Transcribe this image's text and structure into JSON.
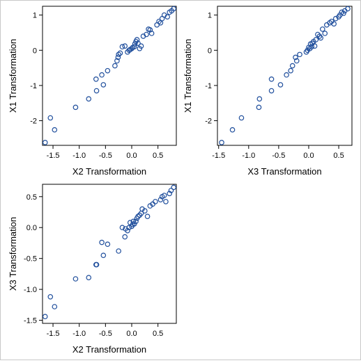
{
  "colors": {
    "marker": "#1f4e9c",
    "axis": "#000000",
    "frame": "#c8c8c8"
  },
  "chart_data": [
    {
      "type": "scatter",
      "title": "",
      "xlabel": "X2 Transformation",
      "ylabel": "X1 Transformation",
      "xlim": [
        -1.7,
        0.85
      ],
      "ylim": [
        -2.7,
        1.25
      ],
      "xticks": [
        -1.5,
        -1.0,
        -0.5,
        0.0,
        0.5
      ],
      "xtick_labels": [
        "-1.5",
        "-1.0",
        "-0.5",
        "0.0",
        "0.5"
      ],
      "yticks": [
        -2,
        -1,
        0,
        1
      ],
      "ytick_labels": [
        "-2",
        "-1",
        "0",
        "1"
      ],
      "grid": false,
      "series": [
        {
          "x": [
            -1.65,
            -1.55,
            -1.47,
            -1.07,
            -0.82,
            -0.68,
            -0.67,
            -0.57,
            -0.54,
            -0.46,
            -0.32,
            -0.28,
            -0.26,
            -0.25,
            -0.22,
            -0.18,
            -0.13,
            -0.08,
            -0.05,
            -0.03,
            0.0,
            0.02,
            0.05,
            0.06,
            0.08,
            0.1,
            0.12,
            0.15,
            0.18,
            0.22,
            0.28,
            0.32,
            0.35,
            0.38,
            0.48,
            0.52,
            0.55,
            0.58,
            0.62,
            0.68,
            0.72,
            0.76,
            0.8
          ],
          "y": [
            -2.62,
            -1.92,
            -2.26,
            -1.62,
            -1.38,
            -0.82,
            -1.15,
            -0.7,
            -0.98,
            -0.58,
            -0.44,
            -0.3,
            -0.2,
            -0.12,
            -0.08,
            0.1,
            0.12,
            -0.05,
            0.0,
            0.02,
            0.05,
            0.08,
            0.1,
            0.18,
            0.25,
            0.3,
            0.2,
            0.05,
            0.12,
            0.4,
            0.45,
            0.6,
            0.58,
            0.48,
            0.72,
            0.82,
            0.78,
            0.9,
            1.0,
            0.95,
            1.08,
            1.12,
            1.18
          ]
        }
      ]
    },
    {
      "type": "scatter",
      "title": "",
      "xlabel": "X3 Transformation",
      "ylabel": "X1 Transformation",
      "xlim": [
        -1.52,
        0.72
      ],
      "ylim": [
        -2.7,
        1.25
      ],
      "xticks": [
        -1.5,
        -1.0,
        -0.5,
        0.0,
        0.5
      ],
      "xtick_labels": [
        "-1.5",
        "-1.0",
        "-0.5",
        "0.0",
        "0.5"
      ],
      "yticks": [
        -2,
        -1,
        0,
        1
      ],
      "ytick_labels": [
        "-2",
        "-1",
        "0",
        "1"
      ],
      "grid": false,
      "series": [
        {
          "x": [
            -1.45,
            -1.27,
            -1.12,
            -0.83,
            -0.82,
            -0.62,
            -0.62,
            -0.47,
            -0.37,
            -0.3,
            -0.27,
            -0.22,
            -0.2,
            -0.15,
            -0.04,
            -0.02,
            0.0,
            0.02,
            0.03,
            0.05,
            0.06,
            0.08,
            0.1,
            0.12,
            0.15,
            0.18,
            0.2,
            0.23,
            0.27,
            0.3,
            0.35,
            0.38,
            0.42,
            0.45,
            0.5,
            0.52,
            0.55,
            0.58,
            0.6,
            0.65
          ],
          "y": [
            -2.62,
            -2.26,
            -1.92,
            -1.62,
            -1.38,
            -1.15,
            -0.82,
            -0.98,
            -0.7,
            -0.58,
            -0.44,
            -0.2,
            -0.3,
            -0.12,
            -0.05,
            0.0,
            0.08,
            0.05,
            0.18,
            0.1,
            0.2,
            0.25,
            0.12,
            0.3,
            0.45,
            0.4,
            0.35,
            0.6,
            0.48,
            0.72,
            0.78,
            0.82,
            0.75,
            0.9,
            0.95,
            1.0,
            1.08,
            1.05,
            1.12,
            1.18
          ]
        }
      ]
    },
    {
      "type": "scatter",
      "title": "",
      "xlabel": "X2 Transformation",
      "ylabel": "X3 Transformation",
      "xlim": [
        -1.7,
        0.85
      ],
      "ylim": [
        -1.55,
        0.7
      ],
      "xticks": [
        -1.5,
        -1.0,
        -0.5,
        0.0,
        0.5
      ],
      "xtick_labels": [
        "-1.5",
        "-1.0",
        "-0.5",
        "0.0",
        "0.5"
      ],
      "yticks": [
        -1.5,
        -1.0,
        -0.5,
        0.0,
        0.5
      ],
      "ytick_labels": [
        "-1.5",
        "-1.0",
        "-0.5",
        "0.0",
        "0.5"
      ],
      "grid": false,
      "series": [
        {
          "x": [
            -1.65,
            -1.55,
            -1.47,
            -1.07,
            -0.82,
            -0.67,
            -0.68,
            -0.54,
            -0.57,
            -0.46,
            -0.25,
            -0.18,
            -0.13,
            -0.12,
            -0.08,
            -0.05,
            -0.03,
            0.0,
            0.02,
            0.03,
            0.05,
            0.08,
            0.1,
            0.12,
            0.15,
            0.18,
            0.2,
            0.25,
            0.3,
            0.35,
            0.4,
            0.45,
            0.55,
            0.58,
            0.62,
            0.65,
            0.72,
            0.75,
            0.8
          ],
          "y": [
            -1.44,
            -1.12,
            -1.28,
            -0.83,
            -0.81,
            -0.6,
            -0.6,
            -0.45,
            -0.24,
            -0.27,
            -0.38,
            0.0,
            -0.15,
            -0.02,
            -0.05,
            0.0,
            0.08,
            0.02,
            0.05,
            0.1,
            0.06,
            0.1,
            0.15,
            0.18,
            0.2,
            0.23,
            0.3,
            0.27,
            0.18,
            0.35,
            0.38,
            0.42,
            0.45,
            0.5,
            0.52,
            0.42,
            0.55,
            0.6,
            0.65
          ]
        }
      ]
    }
  ]
}
